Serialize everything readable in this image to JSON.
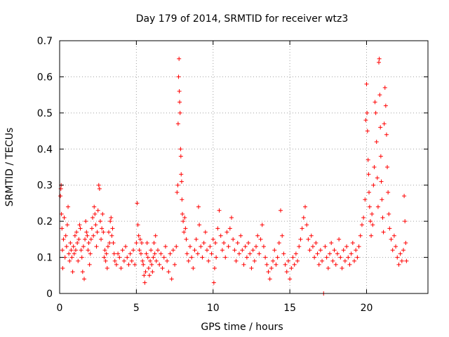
{
  "chart_data": {
    "type": "scatter",
    "title": "Day 179 of 2014, SRMTID for receiver wtz3",
    "xlabel": "GPS time / hours",
    "ylabel": "SRMTID / TECUs",
    "xlim": [
      0,
      24
    ],
    "ylim": [
      0,
      0.7
    ],
    "xticks": [
      0,
      5,
      10,
      15,
      20
    ],
    "xtick_labels": [
      "0",
      "5",
      "10",
      "15",
      "20"
    ],
    "yticks": [
      0,
      0.1,
      0.2,
      0.3,
      0.4,
      0.5,
      0.6,
      0.7
    ],
    "ytick_labels": [
      "0",
      "0.1",
      "0.2",
      "0.3",
      "0.4",
      "0.5",
      "0.6",
      "0.7"
    ],
    "grid": true,
    "marker": "+",
    "series": [
      {
        "name": "SRMTID",
        "color": "#ff0000",
        "points": [
          [
            0.05,
            0.27
          ],
          [
            0.08,
            0.29
          ],
          [
            0.1,
            0.3
          ],
          [
            0.12,
            0.22
          ],
          [
            0.15,
            0.18
          ],
          [
            0.18,
            0.12
          ],
          [
            0.2,
            0.07
          ],
          [
            0.25,
            0.15
          ],
          [
            0.3,
            0.21
          ],
          [
            0.35,
            0.1
          ],
          [
            0.4,
            0.16
          ],
          [
            0.45,
            0.13
          ],
          [
            0.5,
            0.19
          ],
          [
            0.55,
            0.24
          ],
          [
            0.6,
            0.11
          ],
          [
            0.65,
            0.09
          ],
          [
            0.7,
            0.14
          ],
          [
            0.75,
            0.12
          ],
          [
            0.8,
            0.1
          ],
          [
            0.85,
            0.06
          ],
          [
            0.9,
            0.13
          ],
          [
            0.95,
            0.11
          ],
          [
            1.0,
            0.16
          ],
          [
            1.05,
            0.12
          ],
          [
            1.1,
            0.17
          ],
          [
            1.15,
            0.14
          ],
          [
            1.2,
            0.09
          ],
          [
            1.25,
            0.15
          ],
          [
            1.3,
            0.19
          ],
          [
            1.35,
            0.18
          ],
          [
            1.4,
            0.12
          ],
          [
            1.45,
            0.1
          ],
          [
            1.5,
            0.06
          ],
          [
            1.55,
            0.13
          ],
          [
            1.6,
            0.04
          ],
          [
            1.65,
            0.15
          ],
          [
            1.7,
            0.2
          ],
          [
            1.75,
            0.17
          ],
          [
            1.8,
            0.16
          ],
          [
            1.85,
            0.12
          ],
          [
            1.9,
            0.14
          ],
          [
            1.95,
            0.08
          ],
          [
            2.0,
            0.11
          ],
          [
            2.05,
            0.15
          ],
          [
            2.1,
            0.18
          ],
          [
            2.15,
            0.21
          ],
          [
            2.2,
            0.16
          ],
          [
            2.25,
            0.24
          ],
          [
            2.3,
            0.22
          ],
          [
            2.35,
            0.19
          ],
          [
            2.4,
            0.13
          ],
          [
            2.45,
            0.17
          ],
          [
            2.5,
            0.23
          ],
          [
            2.55,
            0.3
          ],
          [
            2.6,
            0.29
          ],
          [
            2.65,
            0.2
          ],
          [
            2.7,
            0.15
          ],
          [
            2.75,
            0.18
          ],
          [
            2.8,
            0.22
          ],
          [
            2.85,
            0.17
          ],
          [
            2.9,
            0.1
          ],
          [
            2.95,
            0.12
          ],
          [
            3.0,
            0.09
          ],
          [
            3.05,
            0.11
          ],
          [
            3.1,
            0.07
          ],
          [
            3.15,
            0.13
          ],
          [
            3.2,
            0.17
          ],
          [
            3.25,
            0.14
          ],
          [
            3.3,
            0.2
          ],
          [
            3.35,
            0.21
          ],
          [
            3.4,
            0.16
          ],
          [
            3.45,
            0.18
          ],
          [
            3.5,
            0.14
          ],
          [
            3.55,
            0.11
          ],
          [
            3.6,
            0.09
          ],
          [
            3.7,
            0.08
          ],
          [
            3.8,
            0.11
          ],
          [
            3.9,
            0.1
          ],
          [
            4.0,
            0.07
          ],
          [
            4.1,
            0.12
          ],
          [
            4.2,
            0.09
          ],
          [
            4.3,
            0.13
          ],
          [
            4.4,
            0.1
          ],
          [
            4.5,
            0.08
          ],
          [
            4.6,
            0.11
          ],
          [
            4.7,
            0.09
          ],
          [
            4.8,
            0.12
          ],
          [
            4.9,
            0.08
          ],
          [
            5.0,
            0.14
          ],
          [
            5.05,
            0.25
          ],
          [
            5.1,
            0.19
          ],
          [
            5.15,
            0.16
          ],
          [
            5.2,
            0.12
          ],
          [
            5.25,
            0.15
          ],
          [
            5.3,
            0.11
          ],
          [
            5.35,
            0.14
          ],
          [
            5.4,
            0.09
          ],
          [
            5.45,
            0.08
          ],
          [
            5.5,
            0.05
          ],
          [
            5.55,
            0.03
          ],
          [
            5.6,
            0.06
          ],
          [
            5.65,
            0.11
          ],
          [
            5.7,
            0.14
          ],
          [
            5.75,
            0.1
          ],
          [
            5.8,
            0.07
          ],
          [
            5.85,
            0.05
          ],
          [
            5.9,
            0.09
          ],
          [
            5.95,
            0.12
          ],
          [
            6.0,
            0.08
          ],
          [
            6.05,
            0.06
          ],
          [
            6.1,
            0.1
          ],
          [
            6.15,
            0.14
          ],
          [
            6.2,
            0.11
          ],
          [
            6.25,
            0.16
          ],
          [
            6.3,
            0.09
          ],
          [
            6.4,
            0.12
          ],
          [
            6.5,
            0.08
          ],
          [
            6.6,
            0.11
          ],
          [
            6.7,
            0.07
          ],
          [
            6.8,
            0.1
          ],
          [
            6.9,
            0.13
          ],
          [
            7.0,
            0.09
          ],
          [
            7.1,
            0.06
          ],
          [
            7.2,
            0.11
          ],
          [
            7.3,
            0.04
          ],
          [
            7.4,
            0.12
          ],
          [
            7.5,
            0.08
          ],
          [
            7.6,
            0.13
          ],
          [
            7.65,
            0.28
          ],
          [
            7.7,
            0.3
          ],
          [
            7.72,
            0.47
          ],
          [
            7.75,
            0.6
          ],
          [
            7.78,
            0.65
          ],
          [
            7.8,
            0.56
          ],
          [
            7.82,
            0.53
          ],
          [
            7.85,
            0.5
          ],
          [
            7.88,
            0.4
          ],
          [
            7.9,
            0.38
          ],
          [
            7.92,
            0.33
          ],
          [
            7.95,
            0.31
          ],
          [
            7.97,
            0.26
          ],
          [
            8.0,
            0.22
          ],
          [
            8.05,
            0.2
          ],
          [
            8.1,
            0.17
          ],
          [
            8.15,
            0.21
          ],
          [
            8.2,
            0.18
          ],
          [
            8.25,
            0.15
          ],
          [
            8.3,
            0.11
          ],
          [
            8.4,
            0.09
          ],
          [
            8.5,
            0.13
          ],
          [
            8.6,
            0.1
          ],
          [
            8.7,
            0.07
          ],
          [
            8.8,
            0.12
          ],
          [
            8.9,
            0.15
          ],
          [
            9.0,
            0.11
          ],
          [
            9.05,
            0.24
          ],
          [
            9.1,
            0.19
          ],
          [
            9.2,
            0.13
          ],
          [
            9.3,
            0.1
          ],
          [
            9.4,
            0.14
          ],
          [
            9.5,
            0.17
          ],
          [
            9.6,
            0.12
          ],
          [
            9.7,
            0.09
          ],
          [
            9.8,
            0.13
          ],
          [
            9.9,
            0.11
          ],
          [
            10.0,
            0.15
          ],
          [
            10.05,
            0.03
          ],
          [
            10.1,
            0.07
          ],
          [
            10.15,
            0.14
          ],
          [
            10.2,
            0.1
          ],
          [
            10.3,
            0.18
          ],
          [
            10.4,
            0.23
          ],
          [
            10.5,
            0.16
          ],
          [
            10.6,
            0.12
          ],
          [
            10.7,
            0.14
          ],
          [
            10.8,
            0.1
          ],
          [
            10.9,
            0.17
          ],
          [
            11.0,
            0.13
          ],
          [
            11.1,
            0.18
          ],
          [
            11.2,
            0.21
          ],
          [
            11.3,
            0.15
          ],
          [
            11.4,
            0.12
          ],
          [
            11.5,
            0.09
          ],
          [
            11.6,
            0.14
          ],
          [
            11.7,
            0.11
          ],
          [
            11.8,
            0.16
          ],
          [
            11.9,
            0.12
          ],
          [
            12.0,
            0.08
          ],
          [
            12.1,
            0.13
          ],
          [
            12.2,
            0.1
          ],
          [
            12.3,
            0.14
          ],
          [
            12.4,
            0.11
          ],
          [
            12.5,
            0.07
          ],
          [
            12.6,
            0.12
          ],
          [
            12.7,
            0.09
          ],
          [
            12.8,
            0.13
          ],
          [
            12.9,
            0.16
          ],
          [
            13.0,
            0.11
          ],
          [
            13.1,
            0.15
          ],
          [
            13.2,
            0.19
          ],
          [
            13.3,
            0.13
          ],
          [
            13.4,
            0.1
          ],
          [
            13.5,
            0.08
          ],
          [
            13.6,
            0.06
          ],
          [
            13.7,
            0.04
          ],
          [
            13.8,
            0.07
          ],
          [
            13.9,
            0.09
          ],
          [
            14.0,
            0.12
          ],
          [
            14.1,
            0.08
          ],
          [
            14.2,
            0.1
          ],
          [
            14.3,
            0.14
          ],
          [
            14.4,
            0.23
          ],
          [
            14.5,
            0.16
          ],
          [
            14.6,
            0.11
          ],
          [
            14.7,
            0.08
          ],
          [
            14.8,
            0.06
          ],
          [
            14.9,
            0.09
          ],
          [
            15.0,
            0.04
          ],
          [
            15.1,
            0.07
          ],
          [
            15.2,
            0.1
          ],
          [
            15.3,
            0.08
          ],
          [
            15.4,
            0.11
          ],
          [
            15.5,
            0.09
          ],
          [
            15.6,
            0.13
          ],
          [
            15.7,
            0.15
          ],
          [
            15.8,
            0.18
          ],
          [
            15.9,
            0.21
          ],
          [
            16.0,
            0.24
          ],
          [
            16.1,
            0.19
          ],
          [
            16.2,
            0.15
          ],
          [
            16.3,
            0.12
          ],
          [
            16.4,
            0.16
          ],
          [
            16.5,
            0.13
          ],
          [
            16.6,
            0.1
          ],
          [
            16.7,
            0.14
          ],
          [
            16.8,
            0.11
          ],
          [
            16.9,
            0.08
          ],
          [
            17.0,
            0.12
          ],
          [
            17.1,
            0.09
          ],
          [
            17.2,
            0.0
          ],
          [
            17.3,
            0.13
          ],
          [
            17.4,
            0.1
          ],
          [
            17.5,
            0.07
          ],
          [
            17.6,
            0.11
          ],
          [
            17.7,
            0.14
          ],
          [
            17.8,
            0.09
          ],
          [
            17.9,
            0.12
          ],
          [
            18.0,
            0.08
          ],
          [
            18.1,
            0.11
          ],
          [
            18.2,
            0.15
          ],
          [
            18.3,
            0.1
          ],
          [
            18.4,
            0.07
          ],
          [
            18.5,
            0.12
          ],
          [
            18.6,
            0.09
          ],
          [
            18.7,
            0.13
          ],
          [
            18.8,
            0.1
          ],
          [
            18.9,
            0.08
          ],
          [
            19.0,
            0.11
          ],
          [
            19.1,
            0.14
          ],
          [
            19.2,
            0.09
          ],
          [
            19.3,
            0.12
          ],
          [
            19.4,
            0.1
          ],
          [
            19.5,
            0.13
          ],
          [
            19.6,
            0.16
          ],
          [
            19.7,
            0.19
          ],
          [
            19.8,
            0.21
          ],
          [
            19.9,
            0.26
          ],
          [
            19.95,
            0.48
          ],
          [
            20.0,
            0.58
          ],
          [
            20.03,
            0.5
          ],
          [
            20.06,
            0.45
          ],
          [
            20.1,
            0.37
          ],
          [
            20.13,
            0.33
          ],
          [
            20.16,
            0.28
          ],
          [
            20.2,
            0.24
          ],
          [
            20.25,
            0.2
          ],
          [
            20.3,
            0.16
          ],
          [
            20.35,
            0.22
          ],
          [
            20.4,
            0.19
          ],
          [
            20.45,
            0.3
          ],
          [
            20.5,
            0.35
          ],
          [
            20.55,
            0.53
          ],
          [
            20.6,
            0.5
          ],
          [
            20.65,
            0.42
          ],
          [
            20.7,
            0.32
          ],
          [
            20.75,
            0.24
          ],
          [
            20.8,
            0.64
          ],
          [
            20.83,
            0.65
          ],
          [
            20.86,
            0.55
          ],
          [
            20.9,
            0.46
          ],
          [
            20.93,
            0.38
          ],
          [
            20.96,
            0.31
          ],
          [
            21.0,
            0.26
          ],
          [
            21.05,
            0.21
          ],
          [
            21.1,
            0.17
          ],
          [
            21.15,
            0.47
          ],
          [
            21.2,
            0.57
          ],
          [
            21.25,
            0.52
          ],
          [
            21.3,
            0.44
          ],
          [
            21.35,
            0.35
          ],
          [
            21.4,
            0.28
          ],
          [
            21.45,
            0.22
          ],
          [
            21.5,
            0.18
          ],
          [
            21.6,
            0.15
          ],
          [
            21.7,
            0.12
          ],
          [
            21.8,
            0.16
          ],
          [
            21.9,
            0.13
          ],
          [
            22.0,
            0.1
          ],
          [
            22.1,
            0.08
          ],
          [
            22.2,
            0.11
          ],
          [
            22.3,
            0.09
          ],
          [
            22.4,
            0.12
          ],
          [
            22.45,
            0.27
          ],
          [
            22.5,
            0.2
          ],
          [
            22.55,
            0.14
          ],
          [
            22.6,
            0.09
          ]
        ]
      }
    ]
  }
}
